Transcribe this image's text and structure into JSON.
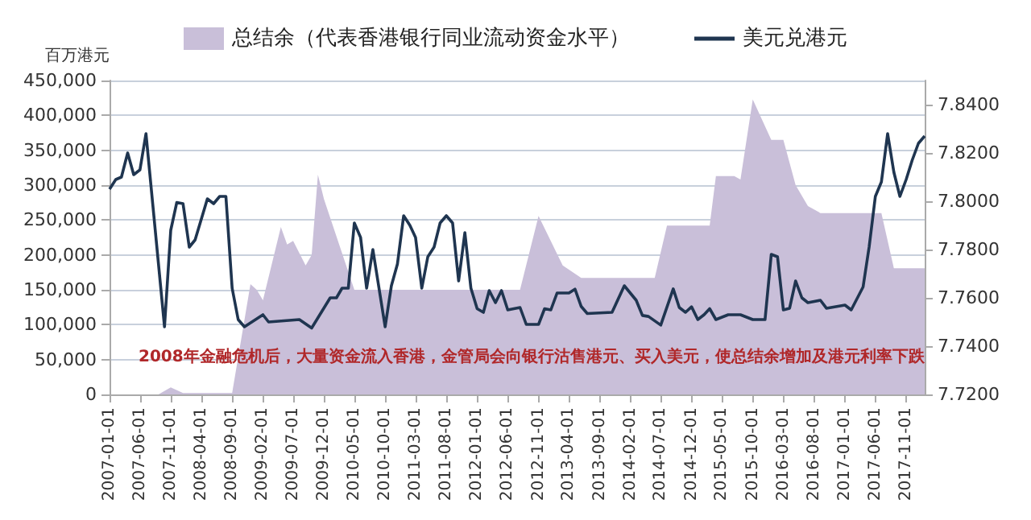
{
  "chart_data": {
    "type": "line",
    "ylabel": "百万港元",
    "legend": "top",
    "grid": "y",
    "marker": "none",
    "xlim": [
      "2007-01-01",
      "2018-02-01"
    ],
    "xticks": [
      "2007-01-01",
      "2007-06-01",
      "2007-11-01",
      "2008-04-01",
      "2008-09-01",
      "2009-02-01",
      "2009-07-01",
      "2009-12-01",
      "2010-05-01",
      "2010-10-01",
      "2011-03-01",
      "2011-08-01",
      "2012-01-01",
      "2012-06-01",
      "2012-11-01",
      "2013-04-01",
      "2013-09-01",
      "2014-02-01",
      "2014-07-01",
      "2014-12-01",
      "2015-05-01",
      "2015-10-01",
      "2016-03-01",
      "2016-08-01",
      "2017-01-01",
      "2017-06-01",
      "2017-11-01"
    ],
    "ylim": [
      0,
      450000
    ],
    "yticks": [
      {
        "value": 0,
        "label": "0"
      },
      {
        "value": 50000,
        "label": "50,000"
      },
      {
        "value": 100000,
        "label": "100,000"
      },
      {
        "value": 150000,
        "label": "150,000"
      },
      {
        "value": 200000,
        "label": "200,000"
      },
      {
        "value": 250000,
        "label": "250,000"
      },
      {
        "value": 300000,
        "label": "300,000"
      },
      {
        "value": 350000,
        "label": "350,000"
      },
      {
        "value": 400000,
        "label": "400,000"
      },
      {
        "value": 450000,
        "label": "450,000"
      }
    ],
    "y2lim": [
      7.72,
      7.85
    ],
    "y2ticks": [
      {
        "value": 7.72,
        "label": "7.7200"
      },
      {
        "value": 7.74,
        "label": "7.7400"
      },
      {
        "value": 7.76,
        "label": "7.7600"
      },
      {
        "value": 7.78,
        "label": "7.7800"
      },
      {
        "value": 7.8,
        "label": "7.8000"
      },
      {
        "value": 7.82,
        "label": "7.8200"
      },
      {
        "value": 7.84,
        "label": "7.8400"
      }
    ],
    "annotations": [
      "2008年金融危机后，大量资金流入香港，金管局会向银行沽售港元、买入美元，使总结余增加及港元利率下跌"
    ],
    "series": [
      {
        "name": "总结余（代表香港银行同业流动资金水平）",
        "type": "area",
        "color": "#c9bfd9",
        "x": [
          "2007-01",
          "2007-09",
          "2007-11",
          "2008-01",
          "2008-09",
          "2008-12",
          "2009-01",
          "2009-02",
          "2009-05",
          "2009-06",
          "2009-07",
          "2009-09",
          "2009-10",
          "2009-11",
          "2009-12",
          "2010-05",
          "2012-08",
          "2012-11",
          "2013-03",
          "2013-06",
          "2014-06",
          "2014-08",
          "2015-03",
          "2015-04",
          "2015-07",
          "2015-08",
          "2015-10",
          "2016-01",
          "2016-03",
          "2016-05",
          "2016-07",
          "2016-09",
          "2017-07",
          "2017-09",
          "2018-02"
        ],
        "values": [
          0,
          0,
          10000,
          2000,
          2000,
          158000,
          150000,
          135000,
          240000,
          215000,
          220000,
          185000,
          200000,
          315000,
          280000,
          150000,
          150000,
          256000,
          185000,
          167000,
          167000,
          242000,
          242000,
          313000,
          313000,
          308000,
          423000,
          365000,
          365000,
          300000,
          270000,
          260000,
          260000,
          181000,
          181000
        ]
      },
      {
        "name": "美元兑港元",
        "axis": "y2",
        "color": "#1f3550",
        "x": [
          "2007-01",
          "2007-02",
          "2007-03",
          "2007-04",
          "2007-05",
          "2007-06",
          "2007-07",
          "2007-10",
          "2007-11",
          "2007-12",
          "2008-01",
          "2008-02",
          "2008-03",
          "2008-05",
          "2008-06",
          "2008-07",
          "2008-08",
          "2008-09",
          "2008-10",
          "2008-11",
          "2009-02",
          "2009-03",
          "2009-08",
          "2009-10",
          "2010-01",
          "2010-02",
          "2010-03",
          "2010-04",
          "2010-05",
          "2010-06",
          "2010-07",
          "2010-08",
          "2010-10",
          "2010-11",
          "2010-12",
          "2011-01",
          "2011-02",
          "2011-03",
          "2011-04",
          "2011-05",
          "2011-06",
          "2011-07",
          "2011-08",
          "2011-09",
          "2011-10",
          "2011-11",
          "2011-12",
          "2012-01",
          "2012-02",
          "2012-03",
          "2012-04",
          "2012-05",
          "2012-06",
          "2012-08",
          "2012-09",
          "2012-11",
          "2012-12",
          "2013-01",
          "2013-02",
          "2013-04",
          "2013-05",
          "2013-06",
          "2013-07",
          "2013-11",
          "2014-01",
          "2014-03",
          "2014-04",
          "2014-05",
          "2014-07",
          "2014-09",
          "2014-10",
          "2014-11",
          "2014-12",
          "2015-01",
          "2015-02",
          "2015-03",
          "2015-04",
          "2015-06",
          "2015-08",
          "2015-10",
          "2015-12",
          "2016-01",
          "2016-02",
          "2016-03",
          "2016-04",
          "2016-05",
          "2016-06",
          "2016-07",
          "2016-09",
          "2016-10",
          "2017-01",
          "2017-02",
          "2017-04",
          "2017-05",
          "2017-06",
          "2017-07",
          "2017-08",
          "2017-09",
          "2017-10",
          "2017-11",
          "2017-12",
          "2018-01",
          "2018-02"
        ],
        "values": [
          7.805,
          7.809,
          7.81,
          7.82,
          7.811,
          7.813,
          7.828,
          7.748,
          7.788,
          7.7995,
          7.799,
          7.781,
          7.784,
          7.801,
          7.799,
          7.802,
          7.802,
          7.764,
          7.751,
          7.748,
          7.753,
          7.75,
          7.751,
          7.7475,
          7.76,
          7.76,
          7.764,
          7.764,
          7.791,
          7.785,
          7.764,
          7.78,
          7.748,
          7.765,
          7.774,
          7.794,
          7.79,
          7.785,
          7.764,
          7.777,
          7.781,
          7.791,
          7.794,
          7.791,
          7.767,
          7.787,
          7.764,
          7.7555,
          7.754,
          7.763,
          7.758,
          7.763,
          7.755,
          7.756,
          7.749,
          7.749,
          7.7555,
          7.755,
          7.762,
          7.762,
          7.7636,
          7.7564,
          7.7535,
          7.754,
          7.765,
          7.759,
          7.7527,
          7.7523,
          7.7487,
          7.7637,
          7.756,
          7.754,
          7.7563,
          7.751,
          7.753,
          7.7555,
          7.751,
          7.753,
          7.753,
          7.751,
          7.751,
          7.778,
          7.777,
          7.755,
          7.7557,
          7.767,
          7.76,
          7.758,
          7.759,
          7.7557,
          7.757,
          7.755,
          7.7645,
          7.781,
          7.802,
          7.808,
          7.828,
          7.812,
          7.802,
          7.809,
          7.817,
          7.824,
          7.827
        ]
      }
    ]
  }
}
